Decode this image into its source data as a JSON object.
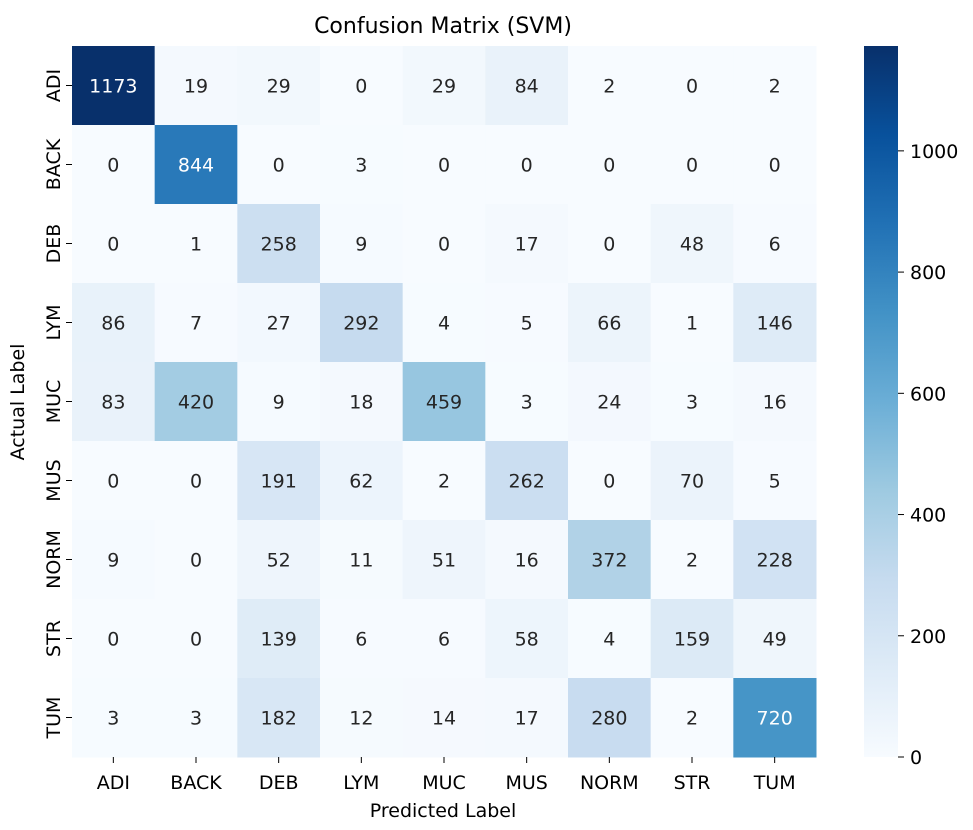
{
  "chart_data": {
    "type": "heatmap",
    "title": "Confusion Matrix (SVM)",
    "xlabel": "Predicted Label",
    "ylabel": "Actual Label",
    "x_categories": [
      "ADI",
      "BACK",
      "DEB",
      "LYM",
      "MUC",
      "MUS",
      "NORM",
      "STR",
      "TUM"
    ],
    "y_categories": [
      "ADI",
      "BACK",
      "DEB",
      "LYM",
      "MUC",
      "MUS",
      "NORM",
      "STR",
      "TUM"
    ],
    "values": [
      [
        1173,
        19,
        29,
        0,
        29,
        84,
        2,
        0,
        2
      ],
      [
        0,
        844,
        0,
        3,
        0,
        0,
        0,
        0,
        0
      ],
      [
        0,
        1,
        258,
        9,
        0,
        17,
        0,
        48,
        6
      ],
      [
        86,
        7,
        27,
        292,
        4,
        5,
        66,
        1,
        146
      ],
      [
        83,
        420,
        9,
        18,
        459,
        3,
        24,
        3,
        16
      ],
      [
        0,
        0,
        191,
        62,
        2,
        262,
        0,
        70,
        5
      ],
      [
        9,
        0,
        52,
        11,
        51,
        16,
        372,
        2,
        228
      ],
      [
        0,
        0,
        139,
        6,
        6,
        58,
        4,
        159,
        49
      ],
      [
        3,
        3,
        182,
        12,
        14,
        17,
        280,
        2,
        720
      ]
    ],
    "colorbar": {
      "min": 0,
      "max": 1173,
      "ticks": [
        0,
        200,
        400,
        600,
        800,
        1000
      ],
      "colormap": "Blues"
    },
    "colors": {
      "low": "#f7fbff",
      "high": "#08306b",
      "text_dark": "#262626",
      "text_light": "#ffffff"
    }
  }
}
